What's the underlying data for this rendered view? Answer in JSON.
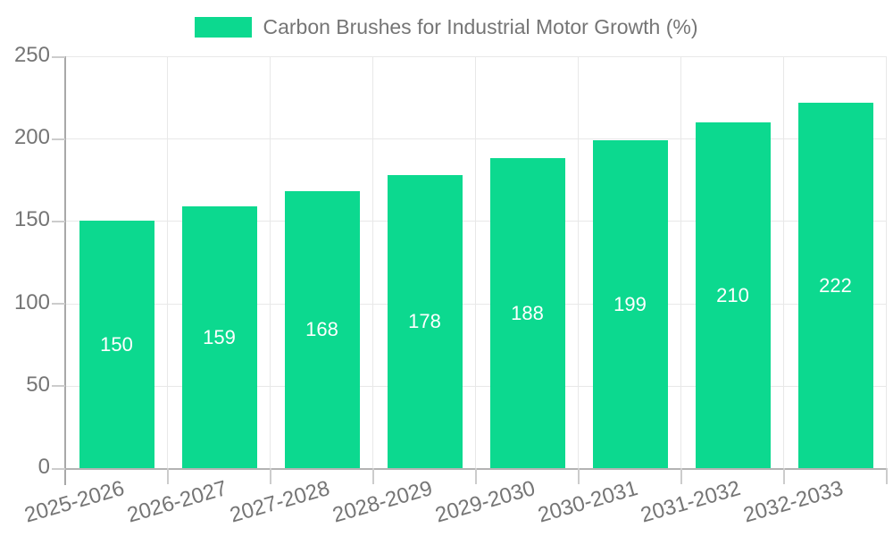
{
  "chart_data": {
    "type": "bar",
    "title": "Carbon Brushes for Industrial Motor Growth (%)",
    "categories": [
      "2025-2026",
      "2026-2027",
      "2027-2028",
      "2028-2029",
      "2029-2030",
      "2030-2031",
      "2031-2032",
      "2032-2033"
    ],
    "values": [
      150,
      159,
      168,
      178,
      188,
      199,
      210,
      222
    ],
    "xlabel": "",
    "ylabel": "",
    "ylim": [
      0,
      250
    ],
    "yticks": [
      0,
      50,
      100,
      150,
      200,
      250
    ],
    "grid": true,
    "legend_position": "top-center",
    "x_label_rotation_deg": -16,
    "colors": {
      "bar": "#0cd98f",
      "bar_value_text": "#ffffff",
      "axis_text": "#757575",
      "gridline": "#e8e8e8",
      "y_axis_line": "#a8a8a8",
      "x_axis_line": "#b3b3b3",
      "tick": "#cccccc",
      "background": "#ffffff"
    }
  }
}
